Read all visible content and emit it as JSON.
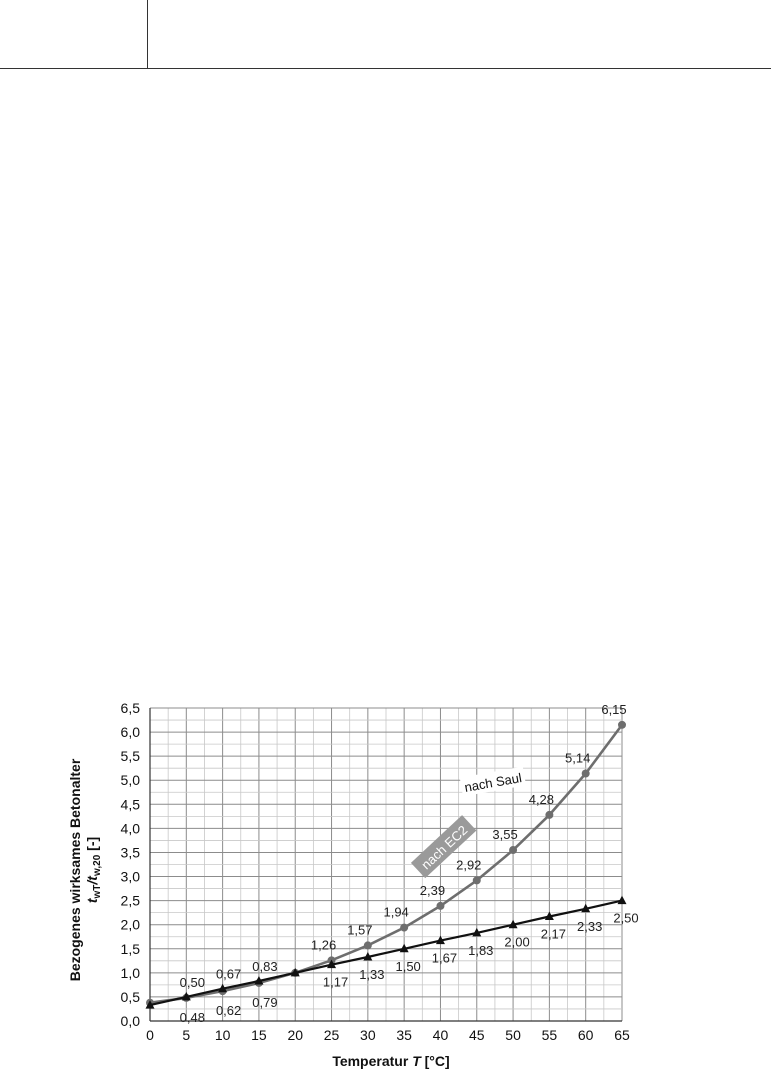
{
  "chart_data": {
    "type": "line",
    "x": [
      0,
      5,
      10,
      15,
      20,
      25,
      30,
      35,
      40,
      45,
      50,
      55,
      60,
      65
    ],
    "xlabel_main": "Temperatur ",
    "xlabel_var": "T",
    "xlabel_unit": " [°C]",
    "ylabel_line1": "Bezogenes wirksames Betonalter",
    "ylabel_line2": "t",
    "ylabel_line2_sub1": "wT",
    "ylabel_line2_slash": "/t",
    "ylabel_line2_sub2": "w,20",
    "ylabel_line2_unit": " [-]",
    "xlim": [
      0,
      65
    ],
    "ylim": [
      0,
      6.5
    ],
    "x_ticks": [
      "0",
      "5",
      "10",
      "15",
      "20",
      "25",
      "30",
      "35",
      "40",
      "45",
      "50",
      "55",
      "60",
      "65"
    ],
    "y_ticks": [
      "0,0",
      "0,5",
      "1,0",
      "1,5",
      "2,0",
      "2,5",
      "3,0",
      "3,5",
      "4,0",
      "4,5",
      "5,0",
      "5,5",
      "6,0",
      "6,5"
    ],
    "grid": true,
    "series": [
      {
        "name": "nach EC2",
        "color": "#6e6e6e",
        "marker": "circle",
        "values": [
          0.38,
          0.48,
          0.62,
          0.79,
          1.0,
          1.26,
          1.57,
          1.94,
          2.39,
          2.92,
          3.55,
          4.28,
          5.14,
          6.15
        ],
        "labels": [
          "",
          "0,48",
          "0,62",
          "0,79",
          "",
          "1,26",
          "1,57",
          "1,94",
          "2,39",
          "2,92",
          "3,55",
          "4,28",
          "5,14",
          "6,15"
        ]
      },
      {
        "name": "nach Saul",
        "color": "#111111",
        "marker": "triangle",
        "values": [
          0.33,
          0.5,
          0.67,
          0.83,
          1.0,
          1.17,
          1.33,
          1.5,
          1.67,
          1.83,
          2.0,
          2.17,
          2.33,
          2.5
        ],
        "labels": [
          "",
          "0,50",
          "0,67",
          "0,83",
          "",
          "1,17",
          "1,33",
          "1,50",
          "1,67",
          "1,83",
          "2,00",
          "2,17",
          "2,33",
          "2,50"
        ]
      }
    ]
  }
}
